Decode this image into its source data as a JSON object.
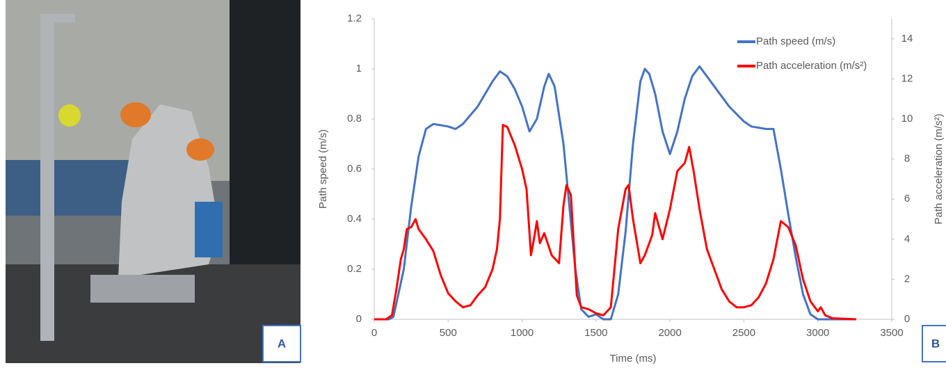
{
  "panels": {
    "photo_label": "A",
    "chart_label": "B"
  },
  "chart_data": {
    "type": "line",
    "x_label": "Time (ms)",
    "y_label": "Path speed (m/s)",
    "y2_label": "Path acceleration (m/s²)",
    "xlim": [
      0,
      3500
    ],
    "xticks": [
      0,
      500,
      1000,
      1500,
      2000,
      2500,
      3000,
      3500
    ],
    "ylim": [
      0,
      1.2
    ],
    "yticks": [
      0,
      0.2,
      0.4,
      0.6,
      0.8,
      1,
      1.2
    ],
    "y2lim": [
      0,
      15
    ],
    "y2ticks": [
      0,
      2,
      4,
      6,
      8,
      10,
      12,
      14
    ],
    "grid": false,
    "legend": "top-right",
    "series": [
      {
        "name": "Path speed (m/s)",
        "color": "#4472c4",
        "x": [
          0,
          100,
          130,
          200,
          250,
          300,
          350,
          400,
          500,
          550,
          600,
          700,
          800,
          850,
          900,
          950,
          1000,
          1050,
          1100,
          1150,
          1180,
          1220,
          1280,
          1320,
          1360,
          1400,
          1450,
          1500,
          1550,
          1600,
          1650,
          1700,
          1750,
          1800,
          1830,
          1860,
          1900,
          1950,
          2000,
          2050,
          2100,
          2150,
          2200,
          2250,
          2300,
          2400,
          2500,
          2550,
          2650,
          2700,
          2750,
          2800,
          2850,
          2900,
          2950,
          3000,
          3250
        ],
        "values": [
          0,
          0,
          0.01,
          0.2,
          0.45,
          0.65,
          0.76,
          0.78,
          0.77,
          0.76,
          0.78,
          0.85,
          0.95,
          0.99,
          0.97,
          0.92,
          0.85,
          0.75,
          0.8,
          0.93,
          0.98,
          0.93,
          0.7,
          0.45,
          0.2,
          0.04,
          0.01,
          0.02,
          0,
          0,
          0.1,
          0.35,
          0.7,
          0.95,
          1,
          0.98,
          0.9,
          0.75,
          0.66,
          0.75,
          0.88,
          0.97,
          1.01,
          0.97,
          0.93,
          0.85,
          0.79,
          0.77,
          0.76,
          0.76,
          0.6,
          0.42,
          0.25,
          0.1,
          0.02,
          0,
          0
        ]
      },
      {
        "name": "Path acceleration (m/s²)",
        "color": "#ff0000",
        "axis": "y2",
        "x": [
          0,
          80,
          120,
          150,
          180,
          200,
          220,
          250,
          280,
          300,
          350,
          400,
          450,
          500,
          550,
          600,
          650,
          700,
          750,
          800,
          830,
          850,
          870,
          900,
          950,
          1000,
          1030,
          1060,
          1080,
          1100,
          1120,
          1150,
          1200,
          1250,
          1280,
          1300,
          1330,
          1370,
          1400,
          1450,
          1500,
          1550,
          1600,
          1650,
          1700,
          1720,
          1750,
          1800,
          1830,
          1850,
          1880,
          1900,
          1950,
          2000,
          2050,
          2100,
          2130,
          2160,
          2200,
          2250,
          2300,
          2350,
          2400,
          2450,
          2500,
          2550,
          2600,
          2650,
          2700,
          2750,
          2800,
          2850,
          2900,
          2950,
          3000,
          3020,
          3050,
          3100,
          3260
        ],
        "values": [
          0,
          0,
          0.2,
          1.5,
          3,
          3.5,
          4.5,
          4.6,
          5,
          4.5,
          4,
          3.4,
          2.2,
          1.3,
          0.9,
          0.6,
          0.7,
          1.2,
          1.6,
          2.5,
          3.5,
          5,
          9.7,
          9.6,
          8.7,
          7.5,
          6.5,
          3.2,
          4,
          4.9,
          3.8,
          4.3,
          3.2,
          2.8,
          5.7,
          6.7,
          6.2,
          1.2,
          0.6,
          0.5,
          0.3,
          0.2,
          0.6,
          4.5,
          6.5,
          6.7,
          5,
          2.8,
          3.2,
          3.6,
          4.2,
          5.3,
          4,
          5.5,
          7.4,
          7.8,
          8.6,
          7.4,
          5.5,
          3.5,
          2.5,
          1.5,
          0.9,
          0.6,
          0.6,
          0.7,
          1.1,
          1.8,
          3,
          4.9,
          4.6,
          3.7,
          2,
          0.9,
          0.4,
          0.6,
          0.2,
          0.05,
          0
        ]
      }
    ]
  }
}
